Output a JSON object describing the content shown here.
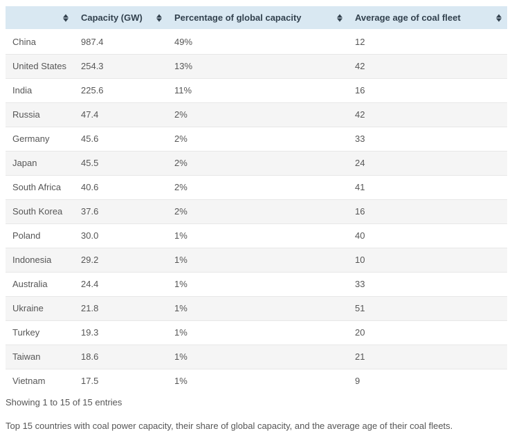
{
  "table": {
    "columns": [
      {
        "label": ""
      },
      {
        "label": "Capacity (GW)"
      },
      {
        "label": "Percentage of global capacity"
      },
      {
        "label": "Average age of coal fleet"
      }
    ],
    "rows": [
      {
        "country": "China",
        "capacity": "987.4",
        "percentage": "49%",
        "age": "12"
      },
      {
        "country": "United States",
        "capacity": "254.3",
        "percentage": "13%",
        "age": "42"
      },
      {
        "country": "India",
        "capacity": "225.6",
        "percentage": "11%",
        "age": "16"
      },
      {
        "country": "Russia",
        "capacity": "47.4",
        "percentage": "2%",
        "age": "42"
      },
      {
        "country": "Germany",
        "capacity": "45.6",
        "percentage": "2%",
        "age": "33"
      },
      {
        "country": "Japan",
        "capacity": "45.5",
        "percentage": "2%",
        "age": "24"
      },
      {
        "country": "South Africa",
        "capacity": "40.6",
        "percentage": "2%",
        "age": "41"
      },
      {
        "country": "South Korea",
        "capacity": "37.6",
        "percentage": "2%",
        "age": "16"
      },
      {
        "country": "Poland",
        "capacity": "30.0",
        "percentage": "1%",
        "age": "40"
      },
      {
        "country": "Indonesia",
        "capacity": "29.2",
        "percentage": "1%",
        "age": "10"
      },
      {
        "country": "Australia",
        "capacity": "24.4",
        "percentage": "1%",
        "age": "33"
      },
      {
        "country": "Ukraine",
        "capacity": "21.8",
        "percentage": "1%",
        "age": "51"
      },
      {
        "country": "Turkey",
        "capacity": "19.3",
        "percentage": "1%",
        "age": "20"
      },
      {
        "country": "Taiwan",
        "capacity": "18.6",
        "percentage": "1%",
        "age": "21"
      },
      {
        "country": "Vietnam",
        "capacity": "17.5",
        "percentage": "1%",
        "age": "9"
      }
    ],
    "status": "Showing 1 to 15 of 15 entries"
  },
  "caption": "Top 15 countries with coal power capacity, their share of global capacity, and the average age of their coal fleets.",
  "colors": {
    "header_bg": "#d9e8f2",
    "header_text": "#32414e",
    "row_stripe": "#f5f5f5",
    "body_text": "#565656",
    "row_border": "#e7e7e7"
  },
  "chart_data": {
    "type": "table",
    "title": "Top 15 countries with coal power capacity",
    "categories": [
      "China",
      "United States",
      "India",
      "Russia",
      "Germany",
      "Japan",
      "South Africa",
      "South Korea",
      "Poland",
      "Indonesia",
      "Australia",
      "Ukraine",
      "Turkey",
      "Taiwan",
      "Vietnam"
    ],
    "series": [
      {
        "name": "Capacity (GW)",
        "values": [
          987.4,
          254.3,
          225.6,
          47.4,
          45.6,
          45.5,
          40.6,
          37.6,
          30.0,
          29.2,
          24.4,
          21.8,
          19.3,
          18.6,
          17.5
        ]
      },
      {
        "name": "Percentage of global capacity",
        "values": [
          "49%",
          "13%",
          "11%",
          "2%",
          "2%",
          "2%",
          "2%",
          "2%",
          "1%",
          "1%",
          "1%",
          "1%",
          "1%",
          "1%",
          "1%"
        ]
      },
      {
        "name": "Average age of coal fleet",
        "values": [
          12,
          42,
          16,
          42,
          33,
          24,
          41,
          16,
          40,
          10,
          33,
          51,
          20,
          21,
          9
        ]
      }
    ]
  }
}
